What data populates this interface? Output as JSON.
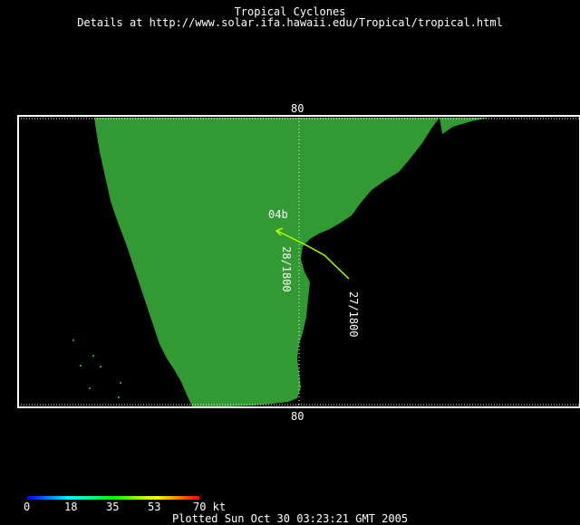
{
  "header": {
    "title": "Tropical Cyclones",
    "details": "Details at http://www.solar.ifa.hawaii.edu/Tropical/tropical.html"
  },
  "map": {
    "longitude_label_top": "80",
    "longitude_label_bottom": "80",
    "land_color": "#339933",
    "ocean_color": "#000000",
    "frame_color": "#ffffff",
    "track_color": "#aaff00"
  },
  "storm": {
    "id": "04b",
    "points": [
      {
        "label": "27/1800"
      },
      {
        "label": "28/1800"
      }
    ]
  },
  "intensity_scale": {
    "ticks": [
      "0",
      "18",
      "35",
      "53",
      "70 kt"
    ],
    "colors": [
      "#0000ff",
      "#00ffff",
      "#00ff00",
      "#ffff00",
      "#ff0000"
    ]
  },
  "footer": {
    "plotted": "Plotted Sun Oct 30 03:23:21 GMT 2005"
  }
}
